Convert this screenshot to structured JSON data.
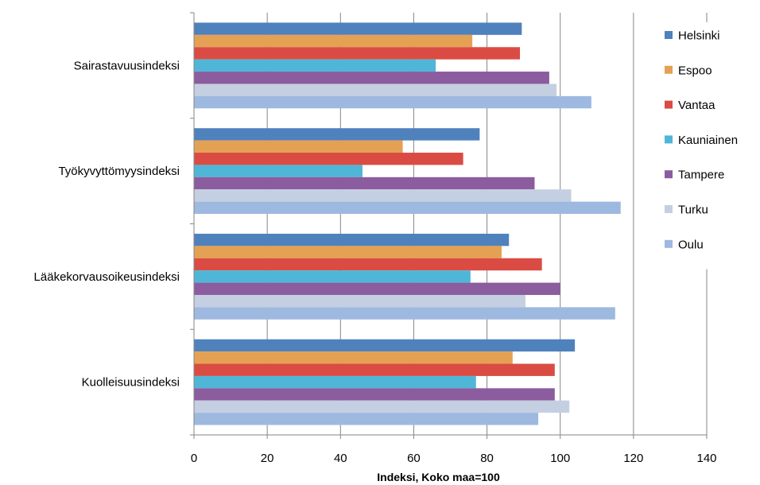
{
  "chart_data": {
    "type": "bar",
    "orientation": "horizontal",
    "title": "",
    "xlabel": "Indeksi, Koko maa=100",
    "ylabel": "",
    "xlim": [
      0,
      140
    ],
    "xticks": [
      "0",
      "20",
      "40",
      "60",
      "80",
      "100",
      "120",
      "140"
    ],
    "grid": "vertical",
    "legend_position": "right",
    "categories": [
      "Sairastavuusindeksi",
      "Työkyvyttömyysindeksi",
      "Lääkekorvausoikeusindeksi",
      "Kuolleisuusindeksi"
    ],
    "series": [
      {
        "name": "Helsinki",
        "color": "#4F81BD",
        "values": [
          89.5,
          78,
          86,
          104
        ]
      },
      {
        "name": "Espoo",
        "color": "#E5A153",
        "values": [
          76,
          57,
          84,
          87
        ]
      },
      {
        "name": "Vantaa",
        "color": "#DA4C43",
        "values": [
          89,
          73.5,
          95,
          98.5
        ]
      },
      {
        "name": "Kauniainen",
        "color": "#4FB6D8",
        "values": [
          66,
          46,
          75.5,
          77
        ]
      },
      {
        "name": "Tampere",
        "color": "#8B5C9E",
        "values": [
          97,
          93,
          100,
          98.5
        ]
      },
      {
        "name": "Turku",
        "color": "#C5CFE2",
        "values": [
          99,
          103,
          90.5,
          102.5
        ]
      },
      {
        "name": "Oulu",
        "color": "#9DB9E0",
        "values": [
          108.5,
          116.5,
          115,
          94
        ]
      }
    ]
  }
}
